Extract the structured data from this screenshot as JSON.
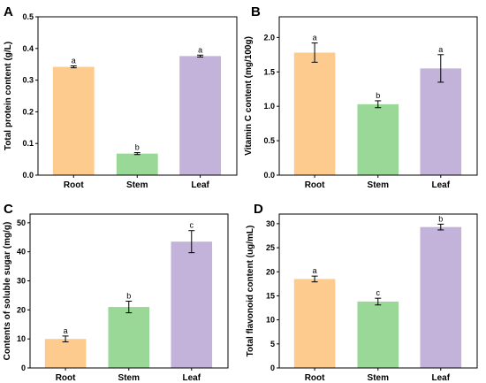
{
  "figure": {
    "colors": {
      "root": "#FDCB8D",
      "stem": "#99D896",
      "leaf": "#C3B2D9"
    }
  },
  "chart_data": [
    {
      "panel": "A",
      "type": "bar",
      "ylabel": "Total protein content (g/L)",
      "categories": [
        "Root",
        "Stem",
        "Leaf"
      ],
      "values": [
        0.342,
        0.068,
        0.376
      ],
      "errors": [
        0.003,
        0.003,
        0.003
      ],
      "labels": [
        "a",
        "b",
        "a"
      ],
      "ylim": [
        0.0,
        0.5
      ],
      "yticks": [
        "0.0",
        "0.1",
        "0.2",
        "0.3",
        "0.4",
        "0.5"
      ],
      "ytick_values": [
        0.0,
        0.1,
        0.2,
        0.3,
        0.4,
        0.5
      ],
      "grid": false
    },
    {
      "panel": "B",
      "type": "bar",
      "ylabel": "Vitamin C content (mg/100g)",
      "categories": [
        "Root",
        "Stem",
        "Leaf"
      ],
      "values": [
        1.78,
        1.03,
        1.55
      ],
      "errors": [
        0.14,
        0.05,
        0.2
      ],
      "labels": [
        "a",
        "b",
        "a"
      ],
      "ylim": [
        0.0,
        2.3
      ],
      "yticks": [
        "0.0",
        "0.5",
        "1.0",
        "1.5",
        "2.0"
      ],
      "ytick_values": [
        0.0,
        0.5,
        1.0,
        1.5,
        2.0
      ],
      "grid": false
    },
    {
      "panel": "C",
      "type": "bar",
      "ylabel": "Contents of soluble sugar (mg/g)",
      "categories": [
        "Root",
        "Stem",
        "Leaf"
      ],
      "values": [
        10.0,
        21.0,
        43.5
      ],
      "errors": [
        1.0,
        2.0,
        3.8
      ],
      "labels": [
        "a",
        "b",
        "c"
      ],
      "ylim": [
        0,
        53
      ],
      "yticks": [
        "0",
        "10",
        "20",
        "30",
        "40",
        "50"
      ],
      "ytick_values": [
        0,
        10,
        20,
        30,
        40,
        50
      ],
      "grid": false
    },
    {
      "panel": "D",
      "type": "bar",
      "ylabel": "Total flavonoid content (ug/mL)",
      "categories": [
        "Root",
        "Stem",
        "Leaf"
      ],
      "values": [
        18.5,
        13.8,
        29.3
      ],
      "errors": [
        0.6,
        0.7,
        0.6
      ],
      "labels": [
        "a",
        "c",
        "b"
      ],
      "ylim": [
        0,
        32
      ],
      "yticks": [
        "0",
        "5",
        "10",
        "15",
        "20",
        "25",
        "30"
      ],
      "ytick_values": [
        0,
        5,
        10,
        15,
        20,
        25,
        30
      ],
      "grid": false
    }
  ]
}
